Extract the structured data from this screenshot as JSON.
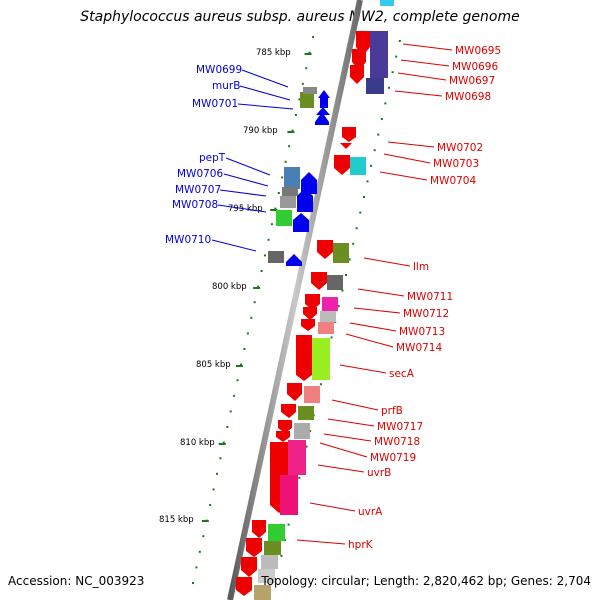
{
  "title": "Staphylococcus aureus subsp. aureus MW2, complete genome",
  "footer": {
    "accession": "Accession: NC_003923",
    "summary": "Topology: circular; Length: 2,820,462 bp; Genes: 2,704"
  },
  "colors": {
    "left_label": "#0000dd",
    "right_label": "#dd0000",
    "backbone": "#8c8c8c",
    "tick": "#1a7a1a"
  },
  "scale_labels": [
    "785 kbp",
    "790 kbp",
    "795 kbp",
    "800 kbp",
    "805 kbp",
    "810 kbp",
    "815 kbp"
  ],
  "left_labels": [
    "MW0699",
    "murB",
    "MW0701",
    "pepT",
    "MW0706",
    "MW0707",
    "MW0708",
    "MW0710"
  ],
  "right_labels": [
    "MW0695",
    "MW0696",
    "MW0697",
    "MW0698",
    "MW0702",
    "MW0703",
    "MW0704",
    "llm",
    "MW0711",
    "MW0712",
    "MW0713",
    "MW0714",
    "secA",
    "prfB",
    "MW0717",
    "MW0718",
    "MW0719",
    "uvrB",
    "uvrA",
    "hprK"
  ]
}
